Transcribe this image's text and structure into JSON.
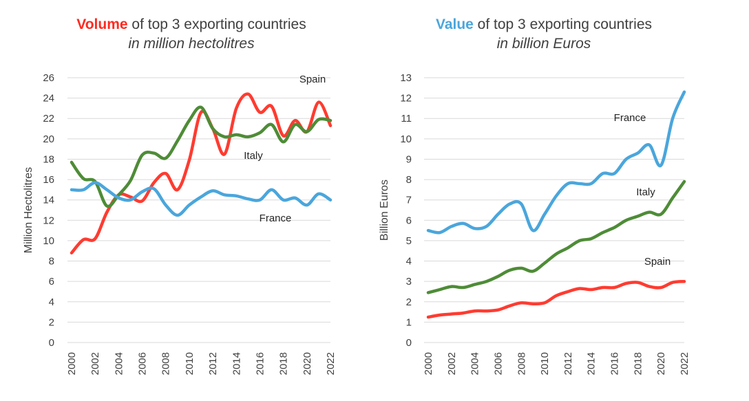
{
  "chart_data": [
    {
      "type": "line",
      "title_highlight": "Volume",
      "title_rest": " of top 3 exporting countries",
      "subtitle": "in million hectolitres",
      "ylabel": "Million Hectolitres",
      "xlabel": "",
      "ylim": [
        0,
        26
      ],
      "yticks": [
        0,
        2,
        4,
        6,
        8,
        10,
        12,
        14,
        16,
        18,
        20,
        22,
        24,
        26
      ],
      "xticks": [
        "2000",
        "2002",
        "2004",
        "2006",
        "2008",
        "2010",
        "2012",
        "2014",
        "2016",
        "2018",
        "2020",
        "2022"
      ],
      "x": [
        2000,
        2001,
        2002,
        2003,
        2004,
        2005,
        2006,
        2007,
        2008,
        2009,
        2010,
        2011,
        2012,
        2013,
        2014,
        2015,
        2016,
        2017,
        2018,
        2019,
        2020,
        2021,
        2022
      ],
      "grid": true,
      "series": [
        {
          "name": "Spain",
          "label": "Spain",
          "color": "#ff3b30",
          "values": [
            8.8,
            10.1,
            10.2,
            12.8,
            14.5,
            14.3,
            13.9,
            15.7,
            16.6,
            15.0,
            17.9,
            22.6,
            21.0,
            18.5,
            23.0,
            24.4,
            22.6,
            23.2,
            20.3,
            21.8,
            20.7,
            23.6,
            21.3
          ]
        },
        {
          "name": "Italy",
          "label": "Italy",
          "color": "#4e8c37",
          "values": [
            17.7,
            16.1,
            15.8,
            13.4,
            14.5,
            15.9,
            18.4,
            18.6,
            18.1,
            19.8,
            21.8,
            23.1,
            21.0,
            20.2,
            20.4,
            20.2,
            20.6,
            21.4,
            19.7,
            21.4,
            20.7,
            21.9,
            21.8
          ]
        },
        {
          "name": "France",
          "label": "France",
          "color": "#4aa6dc",
          "values": [
            15.0,
            15.0,
            15.7,
            15.0,
            14.2,
            14.0,
            14.8,
            15.1,
            13.5,
            12.5,
            13.5,
            14.3,
            14.9,
            14.5,
            14.4,
            14.1,
            14.0,
            15.0,
            14.0,
            14.2,
            13.5,
            14.6,
            14.0
          ]
        }
      ]
    },
    {
      "type": "line",
      "title_highlight": "Value",
      "title_rest": " of top 3 exporting countries",
      "subtitle": "in billion Euros",
      "ylabel": "Billion Euros",
      "xlabel": "",
      "ylim": [
        0,
        13
      ],
      "yticks": [
        0,
        1,
        2,
        3,
        4,
        5,
        6,
        7,
        8,
        9,
        10,
        11,
        12,
        13
      ],
      "xticks": [
        "2000",
        "2002",
        "2004",
        "2006",
        "2008",
        "2010",
        "2012",
        "2014",
        "2016",
        "2018",
        "2020",
        "2022"
      ],
      "x": [
        2000,
        2001,
        2002,
        2003,
        2004,
        2005,
        2006,
        2007,
        2008,
        2009,
        2010,
        2011,
        2012,
        2013,
        2014,
        2015,
        2016,
        2017,
        2018,
        2019,
        2020,
        2021,
        2022
      ],
      "grid": true,
      "series": [
        {
          "name": "France",
          "label": "France",
          "color": "#4aa6dc",
          "values": [
            5.5,
            5.4,
            5.7,
            5.85,
            5.6,
            5.7,
            6.3,
            6.8,
            6.8,
            5.5,
            6.3,
            7.2,
            7.8,
            7.8,
            7.8,
            8.3,
            8.3,
            9.0,
            9.3,
            9.7,
            8.7,
            11.0,
            12.3
          ]
        },
        {
          "name": "Italy",
          "label": "Italy",
          "color": "#4e8c37",
          "values": [
            2.45,
            2.6,
            2.75,
            2.7,
            2.85,
            3.0,
            3.25,
            3.55,
            3.65,
            3.5,
            3.9,
            4.35,
            4.65,
            5.0,
            5.1,
            5.4,
            5.65,
            6.0,
            6.2,
            6.4,
            6.3,
            7.1,
            7.9
          ]
        },
        {
          "name": "Spain",
          "label": "Spain",
          "color": "#ff3b30",
          "values": [
            1.25,
            1.35,
            1.4,
            1.45,
            1.55,
            1.55,
            1.6,
            1.8,
            1.95,
            1.9,
            1.95,
            2.3,
            2.5,
            2.65,
            2.6,
            2.7,
            2.7,
            2.9,
            2.95,
            2.75,
            2.7,
            2.95,
            3.0
          ]
        }
      ]
    }
  ],
  "colors": {
    "volume_highlight": "#ff2a1f",
    "value_highlight": "#4aa6dc",
    "grid": "#d9d9d9",
    "text": "#404040"
  }
}
